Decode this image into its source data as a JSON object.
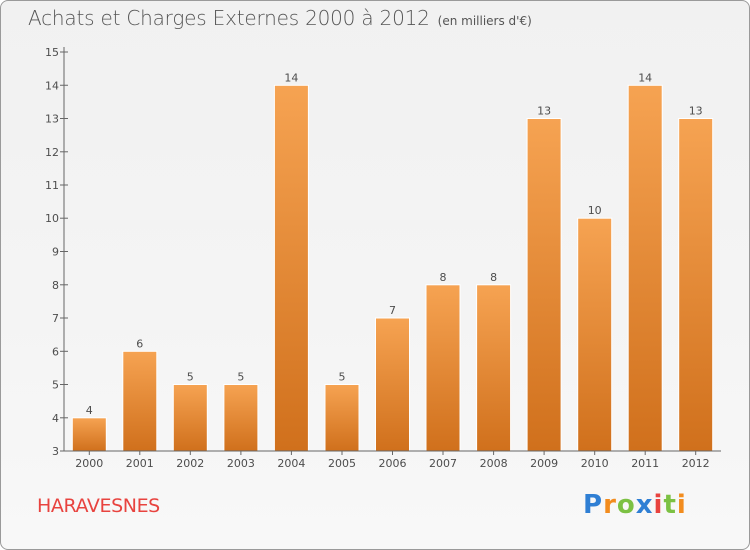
{
  "header": {
    "title": "Achats et Charges Externes 2000 à 2012",
    "unit": "(en milliers d'€)"
  },
  "footer": {
    "commune": "HARAVESNES",
    "logo_text": "Proxiti",
    "logo_letters": [
      {
        "char": "P",
        "color": "#2f7fd4"
      },
      {
        "char": "r",
        "color": "#f28c1e"
      },
      {
        "char": "o",
        "color": "#7cc143"
      },
      {
        "char": "x",
        "color": "#2f7fd4"
      },
      {
        "char": "i",
        "color": "#e8433f"
      },
      {
        "char": "t",
        "color": "#7cc143"
      },
      {
        "char": "i",
        "color": "#f28c1e"
      }
    ]
  },
  "colors": {
    "bar_top": "#f6a352",
    "bar_bottom": "#d0701c",
    "axis": "#666666",
    "commune_text": "#e8433f"
  },
  "chart_data": {
    "type": "bar",
    "title": "Achats et Charges Externes 2000 à 2012",
    "subtitle": "(en milliers d'€)",
    "xlabel": "",
    "ylabel": "",
    "categories": [
      "2000",
      "2001",
      "2002",
      "2003",
      "2004",
      "2005",
      "2006",
      "2007",
      "2008",
      "2009",
      "2010",
      "2011",
      "2012"
    ],
    "values": [
      4,
      6,
      5,
      5,
      14,
      5,
      7,
      8,
      8,
      13,
      10,
      14,
      13
    ],
    "ylim": [
      3,
      15
    ],
    "yticks": [
      3,
      4,
      5,
      6,
      7,
      8,
      9,
      10,
      11,
      12,
      13,
      14,
      15
    ],
    "grid": false,
    "legend": "none"
  }
}
